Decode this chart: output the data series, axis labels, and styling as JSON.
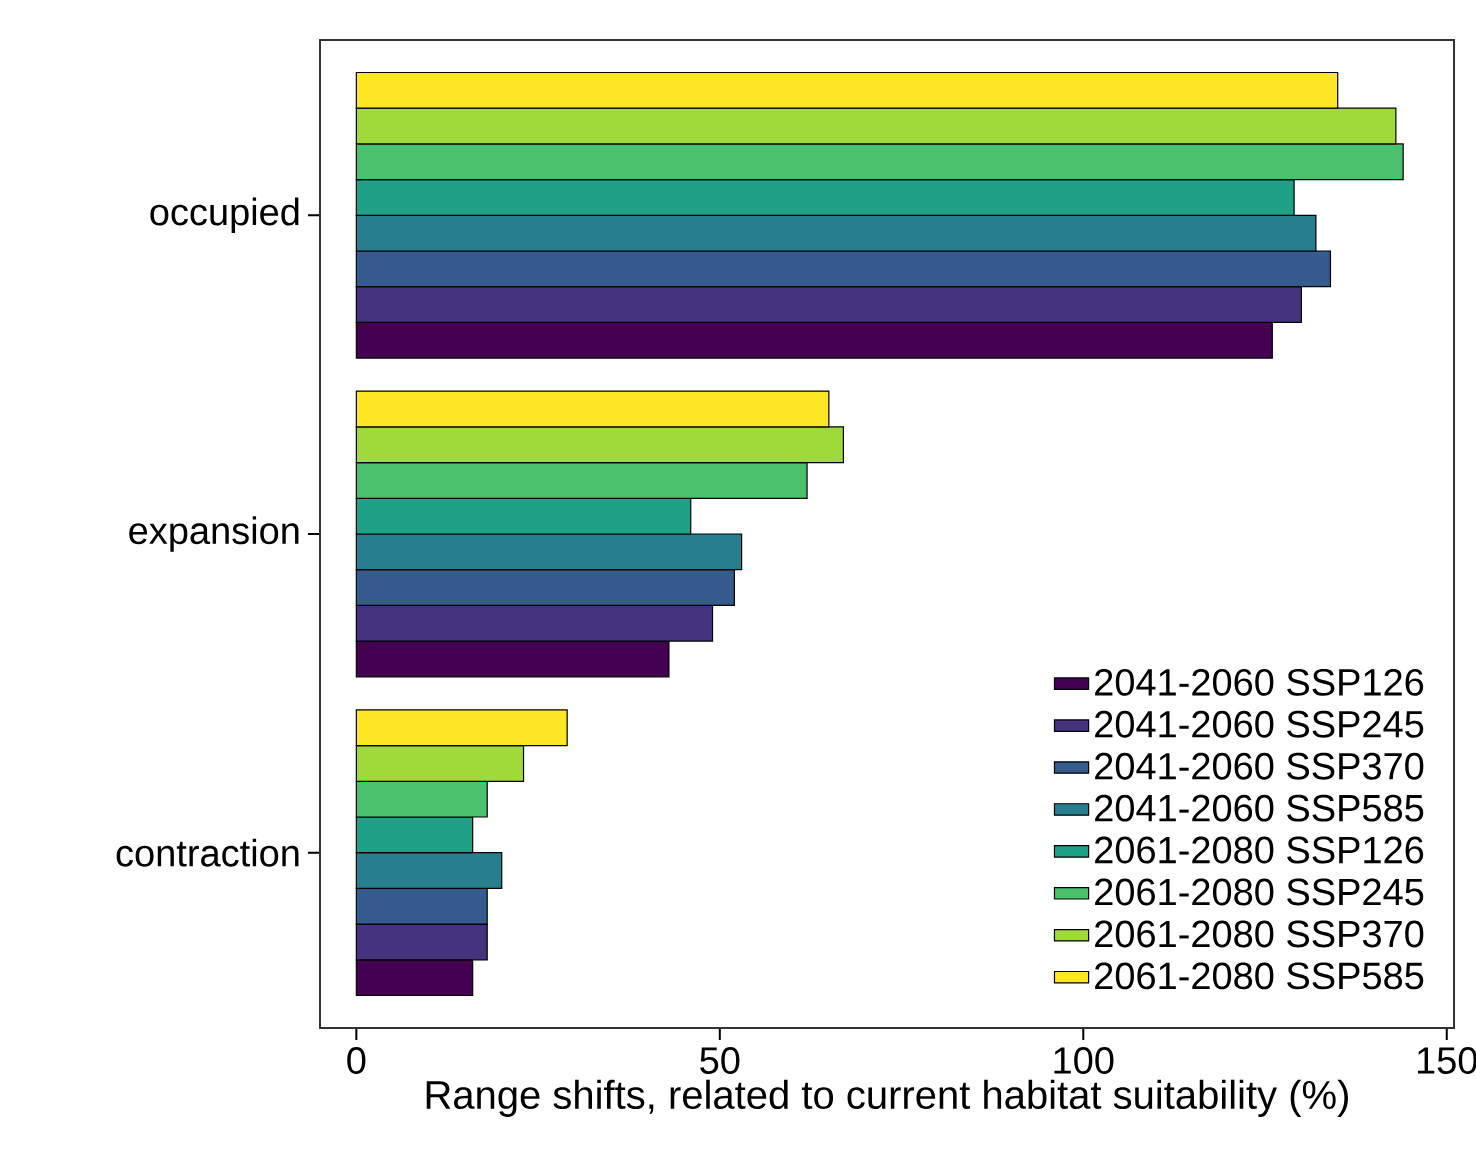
{
  "chart_data": {
    "type": "bar",
    "orientation": "horizontal",
    "xlabel": "Range shifts, related to current habitat suitability (%)",
    "categories": [
      "occupied",
      "expansion",
      "contraction"
    ],
    "series": [
      {
        "name": "2041-2060 SSP126",
        "color": "#440154",
        "values": [
          126,
          43,
          16
        ]
      },
      {
        "name": "2041-2060 SSP245",
        "color": "#46337e",
        "values": [
          130,
          49,
          18
        ]
      },
      {
        "name": "2041-2060 SSP370",
        "color": "#365c8d",
        "values": [
          134,
          52,
          18
        ]
      },
      {
        "name": "2041-2060 SSP585",
        "color": "#277f8e",
        "values": [
          132,
          53,
          20
        ]
      },
      {
        "name": "2061-2080 SSP126",
        "color": "#1fa187",
        "values": [
          129,
          46,
          16
        ]
      },
      {
        "name": "2061-2080 SSP245",
        "color": "#4ac16d",
        "values": [
          144,
          62,
          18
        ]
      },
      {
        "name": "2061-2080 SSP370",
        "color": "#9fda3a",
        "values": [
          143,
          67,
          23
        ]
      },
      {
        "name": "2061-2080 SSP585",
        "color": "#fde725",
        "values": [
          135,
          65,
          29
        ]
      }
    ],
    "xlim": [
      -5,
      151
    ],
    "xticks": [
      0,
      50,
      100,
      150
    ],
    "grid": false,
    "legend": "bottom right"
  }
}
